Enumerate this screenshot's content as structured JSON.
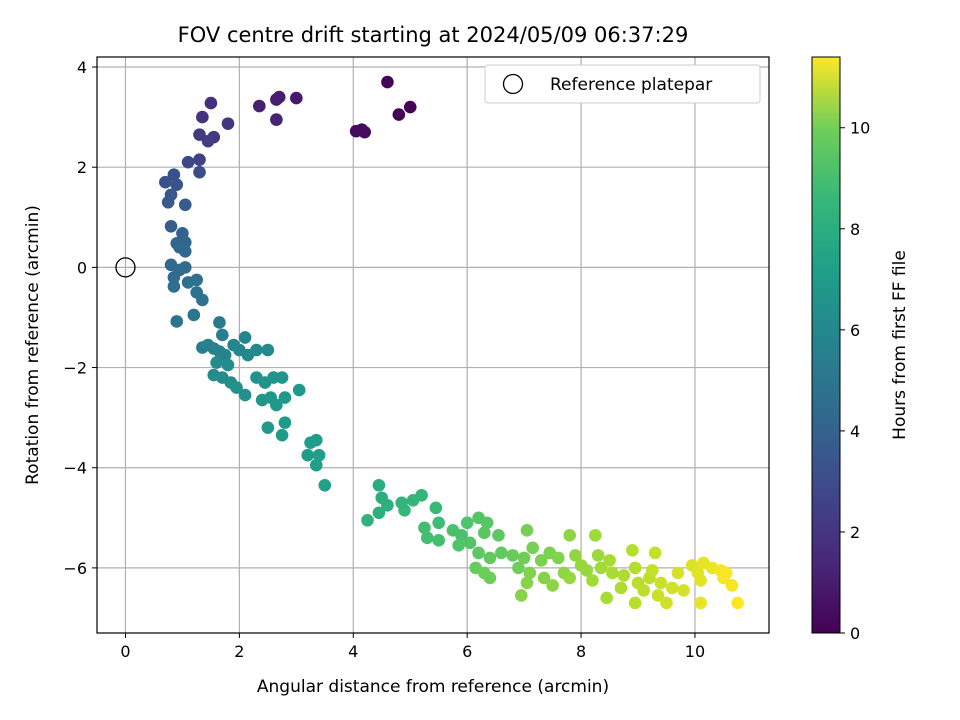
{
  "chart_data": {
    "type": "scatter",
    "title": "FOV centre drift starting at 2024/05/09 06:37:29",
    "xlabel": "Angular distance from reference (arcmin)",
    "ylabel": "Rotation from reference (arcmin)",
    "xlim": [
      -0.5,
      11.3
    ],
    "ylim": [
      -7.3,
      4.2
    ],
    "xticks": [
      0,
      2,
      4,
      6,
      8,
      10
    ],
    "yticks": [
      -6,
      -4,
      -2,
      0,
      2,
      4
    ],
    "grid": true,
    "legend": {
      "location": "upper right",
      "entries": [
        "Reference platepar"
      ]
    },
    "reference_point": {
      "name": "Reference platepar",
      "x": 0,
      "y": 0
    },
    "colorbar": {
      "label": "Hours from first FF file",
      "range": [
        0,
        11.4
      ],
      "ticks": [
        0,
        2,
        4,
        6,
        8,
        10
      ],
      "colormap": "viridis"
    },
    "series": [
      {
        "points": [
          [
            4.6,
            3.7,
            0.1
          ],
          [
            5.0,
            3.2,
            0.1
          ],
          [
            4.8,
            3.05,
            0.1
          ],
          [
            4.2,
            2.7,
            0.3
          ],
          [
            4.05,
            2.72,
            0.3
          ],
          [
            4.15,
            2.75,
            0.35
          ],
          [
            3.0,
            3.38,
            0.8
          ],
          [
            2.7,
            3.4,
            0.9
          ],
          [
            2.65,
            3.35,
            0.9
          ],
          [
            2.35,
            3.22,
            1.0
          ],
          [
            2.65,
            2.95,
            1.1
          ],
          [
            1.5,
            3.28,
            1.6
          ],
          [
            1.35,
            3.0,
            1.7
          ],
          [
            1.8,
            2.87,
            1.8
          ],
          [
            1.55,
            2.6,
            1.8
          ],
          [
            1.3,
            2.65,
            2.0
          ],
          [
            1.45,
            2.52,
            2.1
          ],
          [
            1.3,
            2.15,
            2.3
          ],
          [
            1.1,
            2.1,
            2.4
          ],
          [
            1.3,
            1.9,
            2.6
          ],
          [
            0.85,
            1.85,
            2.8
          ],
          [
            0.7,
            1.7,
            2.9
          ],
          [
            0.9,
            1.65,
            3.0
          ],
          [
            0.8,
            1.45,
            3.1
          ],
          [
            0.75,
            1.3,
            3.2
          ],
          [
            1.05,
            1.25,
            3.3
          ],
          [
            0.8,
            0.82,
            3.4
          ],
          [
            1.0,
            0.68,
            3.6
          ],
          [
            0.9,
            0.48,
            3.7
          ],
          [
            1.05,
            0.5,
            3.7
          ],
          [
            0.95,
            0.4,
            3.8
          ],
          [
            1.05,
            0.32,
            3.8
          ],
          [
            0.8,
            0.05,
            3.9
          ],
          [
            0.95,
            -0.05,
            3.9
          ],
          [
            1.05,
            0.0,
            4.0
          ],
          [
            0.85,
            -0.2,
            4.0
          ],
          [
            1.1,
            -0.3,
            4.1
          ],
          [
            0.85,
            -0.38,
            4.1
          ],
          [
            1.25,
            -0.25,
            4.2
          ],
          [
            1.25,
            -0.5,
            4.3
          ],
          [
            1.35,
            -0.65,
            4.3
          ],
          [
            0.9,
            -1.08,
            4.4
          ],
          [
            1.2,
            -0.95,
            4.5
          ],
          [
            1.65,
            -1.1,
            4.7
          ],
          [
            1.7,
            -1.35,
            4.8
          ],
          [
            1.35,
            -1.6,
            4.9
          ],
          [
            1.45,
            -1.55,
            5.0
          ],
          [
            1.55,
            -1.62,
            5.0
          ],
          [
            1.65,
            -1.68,
            5.1
          ],
          [
            1.75,
            -1.75,
            5.1
          ],
          [
            1.9,
            -1.55,
            5.2
          ],
          [
            2.1,
            -1.4,
            5.2
          ],
          [
            2.0,
            -1.65,
            5.3
          ],
          [
            2.15,
            -1.75,
            5.3
          ],
          [
            2.3,
            -1.65,
            5.4
          ],
          [
            2.5,
            -1.65,
            5.4
          ],
          [
            1.6,
            -1.9,
            5.5
          ],
          [
            1.8,
            -1.95,
            5.5
          ],
          [
            1.55,
            -2.15,
            5.5
          ],
          [
            1.7,
            -2.2,
            5.6
          ],
          [
            1.85,
            -2.3,
            5.6
          ],
          [
            1.95,
            -2.4,
            5.7
          ],
          [
            2.1,
            -2.55,
            5.7
          ],
          [
            2.3,
            -2.2,
            5.8
          ],
          [
            2.45,
            -2.3,
            5.8
          ],
          [
            2.6,
            -2.2,
            5.9
          ],
          [
            2.75,
            -2.2,
            5.9
          ],
          [
            2.4,
            -2.65,
            6.0
          ],
          [
            2.55,
            -2.6,
            6.0
          ],
          [
            2.65,
            -2.75,
            6.0
          ],
          [
            2.8,
            -2.6,
            6.1
          ],
          [
            3.05,
            -2.45,
            6.1
          ],
          [
            2.5,
            -3.2,
            6.2
          ],
          [
            2.8,
            -3.1,
            6.2
          ],
          [
            2.75,
            -3.35,
            6.2
          ],
          [
            3.25,
            -3.5,
            6.3
          ],
          [
            3.35,
            -3.45,
            6.3
          ],
          [
            3.2,
            -3.75,
            6.3
          ],
          [
            3.4,
            -3.75,
            6.4
          ],
          [
            3.35,
            -3.95,
            6.4
          ],
          [
            3.5,
            -4.35,
            6.5
          ],
          [
            4.45,
            -4.35,
            7.0
          ],
          [
            4.5,
            -4.6,
            7.1
          ],
          [
            4.6,
            -4.75,
            7.2
          ],
          [
            4.45,
            -4.9,
            7.2
          ],
          [
            4.25,
            -5.05,
            7.3
          ],
          [
            4.85,
            -4.7,
            7.4
          ],
          [
            5.05,
            -4.65,
            7.5
          ],
          [
            5.2,
            -4.55,
            7.5
          ],
          [
            4.9,
            -4.85,
            7.6
          ],
          [
            5.45,
            -4.8,
            7.7
          ],
          [
            5.5,
            -5.1,
            7.8
          ],
          [
            5.25,
            -5.2,
            7.9
          ],
          [
            5.3,
            -5.4,
            8.0
          ],
          [
            5.5,
            -5.45,
            8.0
          ],
          [
            5.75,
            -5.25,
            8.1
          ],
          [
            5.9,
            -5.35,
            8.1
          ],
          [
            6.0,
            -5.1,
            8.2
          ],
          [
            5.85,
            -5.55,
            8.2
          ],
          [
            6.05,
            -5.5,
            8.3
          ],
          [
            6.2,
            -5.0,
            8.3
          ],
          [
            6.35,
            -5.1,
            8.4
          ],
          [
            6.3,
            -5.3,
            8.4
          ],
          [
            6.55,
            -5.35,
            8.5
          ],
          [
            6.2,
            -5.7,
            8.5
          ],
          [
            6.4,
            -5.8,
            8.6
          ],
          [
            6.6,
            -5.7,
            8.6
          ],
          [
            6.8,
            -5.75,
            8.7
          ],
          [
            6.15,
            -6.0,
            8.7
          ],
          [
            6.3,
            -6.1,
            8.8
          ],
          [
            6.4,
            -6.2,
            8.8
          ],
          [
            6.9,
            -6.0,
            8.9
          ],
          [
            7.0,
            -5.8,
            8.9
          ],
          [
            7.05,
            -5.25,
            9.0
          ],
          [
            7.15,
            -5.6,
            9.0
          ],
          [
            7.3,
            -5.85,
            9.1
          ],
          [
            7.45,
            -5.7,
            9.1
          ],
          [
            7.6,
            -5.8,
            9.2
          ],
          [
            7.1,
            -6.1,
            9.2
          ],
          [
            7.05,
            -6.3,
            9.3
          ],
          [
            6.95,
            -6.55,
            9.3
          ],
          [
            7.35,
            -6.2,
            9.3
          ],
          [
            7.5,
            -6.35,
            9.4
          ],
          [
            7.7,
            -6.1,
            9.4
          ],
          [
            7.8,
            -5.35,
            9.5
          ],
          [
            7.9,
            -5.75,
            9.5
          ],
          [
            8.0,
            -5.95,
            9.6
          ],
          [
            7.8,
            -6.2,
            9.6
          ],
          [
            8.1,
            -6.05,
            9.6
          ],
          [
            8.25,
            -5.35,
            9.7
          ],
          [
            8.3,
            -5.75,
            9.7
          ],
          [
            8.35,
            -6.0,
            9.8
          ],
          [
            8.2,
            -6.25,
            9.8
          ],
          [
            8.5,
            -5.85,
            9.9
          ],
          [
            8.55,
            -6.1,
            9.9
          ],
          [
            8.45,
            -6.6,
            9.9
          ],
          [
            8.75,
            -6.15,
            10.0
          ],
          [
            8.7,
            -6.4,
            10.0
          ],
          [
            8.9,
            -5.65,
            10.1
          ],
          [
            8.95,
            -6.0,
            10.1
          ],
          [
            9.0,
            -6.3,
            10.2
          ],
          [
            8.95,
            -6.7,
            10.2
          ],
          [
            9.1,
            -6.45,
            10.3
          ],
          [
            9.2,
            -6.2,
            10.3
          ],
          [
            9.3,
            -5.7,
            10.4
          ],
          [
            9.25,
            -6.05,
            10.4
          ],
          [
            9.4,
            -6.3,
            10.5
          ],
          [
            9.35,
            -6.55,
            10.5
          ],
          [
            9.5,
            -6.7,
            10.6
          ],
          [
            9.6,
            -6.4,
            10.6
          ],
          [
            9.7,
            -6.1,
            10.7
          ],
          [
            9.8,
            -6.45,
            10.7
          ],
          [
            9.95,
            -5.95,
            10.8
          ],
          [
            10.05,
            -6.1,
            10.9
          ],
          [
            10.1,
            -6.25,
            10.9
          ],
          [
            10.15,
            -5.9,
            11.0
          ],
          [
            10.1,
            -6.7,
            11.0
          ],
          [
            10.3,
            -6.0,
            11.1
          ],
          [
            10.45,
            -6.05,
            11.2
          ],
          [
            10.5,
            -6.2,
            11.2
          ],
          [
            10.55,
            -6.1,
            11.3
          ],
          [
            10.65,
            -6.35,
            11.3
          ],
          [
            10.75,
            -6.7,
            11.4
          ]
        ]
      }
    ]
  }
}
